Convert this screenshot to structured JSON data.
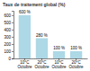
{
  "chart_data": {
    "type": "bar",
    "title": "Taux de traitement global (%)",
    "categories": [
      "10°C\nOctobre",
      "20°C\nOctobre",
      "10°C\nOctobre",
      "20°C\nOctobre"
    ],
    "values": [
      600,
      280,
      100,
      100
    ],
    "value_labels": [
      "600 %",
      "280 %",
      "100 %",
      "100 %"
    ],
    "data_labels": true,
    "color": "#add8e6",
    "ylim": [
      0,
      660
    ],
    "yticks": [
      0,
      100,
      200,
      300,
      400,
      500,
      600
    ],
    "grid": false
  }
}
